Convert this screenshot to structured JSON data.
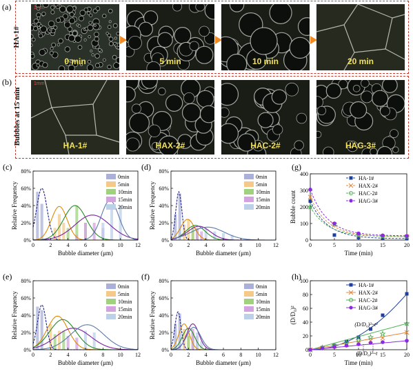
{
  "panel_a": {
    "letter": "(a)",
    "row_label": "HA-1#",
    "scale": "1mm",
    "captions": [
      "0 min",
      "5 min",
      "10 min",
      "20 min"
    ]
  },
  "panel_b": {
    "letter": "(b)",
    "row_label": "Bubbles at 15 min",
    "scale": "1mm",
    "captions": [
      "HA-1#",
      "HAX-2#",
      "HAC-2#",
      "HAG-3#"
    ]
  },
  "colors": {
    "dash": "#c0392b",
    "arrow": "#f08a24",
    "caption": "#f2e15a",
    "t0": "#1f1f8c",
    "t5": "#e08a00",
    "t10": "#2a8a2a",
    "t15": "#7a1fa0",
    "t20": "#5a7aa8",
    "bar0": "#aab0d8",
    "bar5": "#f5c98a",
    "bar10": "#9fd17f",
    "bar15": "#d3a3e0",
    "bar20": "#bcd0e8",
    "ha1": "#1f3fa0",
    "hax2": "#e08a40",
    "hac2": "#4caf50",
    "hag3": "#8a2be2"
  },
  "chart_data": [
    {
      "id": "c",
      "type": "bar",
      "letter": "(c)",
      "xlabel": "Bubble diameter (μm)",
      "ylabel": "Relative Frequency",
      "xlim": [
        0,
        12
      ],
      "ylim": [
        0,
        80
      ],
      "xticks": [
        "0",
        "2",
        "4",
        "6",
        "8",
        "10",
        "12"
      ],
      "yticks": [
        "0%",
        "20%",
        "40%",
        "60%",
        "80%"
      ],
      "legend": [
        "0min",
        "5min",
        "10min",
        "15min",
        "20min"
      ],
      "series": [
        {
          "name": "0min",
          "bars": [
            [
              0.5,
              56
            ],
            [
              1,
              42
            ]
          ],
          "mean": 1.0,
          "sd": 0.6,
          "peak": 60
        },
        {
          "name": "5min",
          "bars": [
            [
              2.5,
              14
            ],
            [
              3,
              30
            ],
            [
              3.5,
              20
            ]
          ],
          "mean": 3.0,
          "sd": 0.9,
          "peak": 39
        },
        {
          "name": "10min",
          "bars": [
            [
              4,
              14
            ],
            [
              5,
              40
            ],
            [
              6,
              20
            ]
          ],
          "mean": 4.8,
          "sd": 1.3,
          "peak": 40
        },
        {
          "name": "15min",
          "bars": [
            [
              5,
              6
            ],
            [
              6,
              20
            ],
            [
              7,
              20
            ],
            [
              8,
              14
            ]
          ],
          "mean": 6.8,
          "sd": 2.0,
          "peak": 29
        },
        {
          "name": "20min",
          "bars": [
            [
              8,
              20
            ],
            [
              9,
              40
            ],
            [
              10,
              40
            ]
          ],
          "mean": 8.8,
          "sd": 1.0,
          "peak": 46
        }
      ]
    },
    {
      "id": "d",
      "type": "bar",
      "letter": "(d)",
      "xlabel": "Bubble diameter (μm)",
      "ylabel": "Relative Frequency",
      "xlim": [
        0,
        12
      ],
      "ylim": [
        0,
        80
      ],
      "xticks": [
        "0",
        "2",
        "4",
        "6",
        "8",
        "10",
        "12"
      ],
      "yticks": [
        "0%",
        "20%",
        "40%",
        "60%",
        "80%"
      ],
      "legend": [
        "0min",
        "5min",
        "10min",
        "15min",
        "20min"
      ],
      "series": [
        {
          "name": "0min",
          "bars": [
            [
              0.5,
              30
            ],
            [
              1,
              54
            ]
          ],
          "mean": 0.9,
          "sd": 0.35,
          "peak": 56
        },
        {
          "name": "5min",
          "bars": [
            [
              1.5,
              18
            ],
            [
              2,
              24
            ],
            [
              2.5,
              10
            ]
          ],
          "mean": 1.9,
          "sd": 0.8,
          "peak": 24
        },
        {
          "name": "10min",
          "bars": [
            [
              2.5,
              16
            ],
            [
              3,
              14
            ]
          ],
          "mean": 2.8,
          "sd": 1.1,
          "peak": 17
        },
        {
          "name": "15min",
          "bars": [
            [
              3,
              14
            ],
            [
              3.5,
              10
            ]
          ],
          "mean": 3.2,
          "sd": 1.3,
          "peak": 16
        },
        {
          "name": "20min",
          "bars": [
            [
              4,
              14
            ],
            [
              5,
              10
            ],
            [
              6,
              8
            ],
            [
              7,
              6
            ]
          ],
          "mean": 4.2,
          "sd": 1.9,
          "peak": 15
        }
      ]
    },
    {
      "id": "e",
      "type": "bar",
      "letter": "(e)",
      "xlabel": "Bubble diameter (μm)",
      "ylabel": "Relative Frequency",
      "xlim": [
        0,
        12
      ],
      "ylim": [
        0,
        80
      ],
      "xticks": [
        "0",
        "2",
        "4",
        "6",
        "8",
        "10",
        "12"
      ],
      "yticks": [
        "0%",
        "20%",
        "40%",
        "60%",
        "80%"
      ],
      "legend": [
        "0min",
        "5min",
        "10min",
        "15min",
        "20min"
      ],
      "series": [
        {
          "name": "0min",
          "bars": [
            [
              0.5,
              50
            ],
            [
              1,
              46
            ]
          ],
          "mean": 1.0,
          "sd": 0.5,
          "peak": 52
        },
        {
          "name": "5min",
          "bars": [
            [
              2,
              30
            ],
            [
              3,
              22
            ]
          ],
          "mean": 2.8,
          "sd": 1.2,
          "peak": 39
        },
        {
          "name": "10min",
          "bars": [
            [
              2.5,
              18
            ],
            [
              3.5,
              22
            ]
          ],
          "mean": 3.4,
          "sd": 1.5,
          "peak": 35
        },
        {
          "name": "15min",
          "bars": [
            [
              4,
              16
            ],
            [
              5,
              14
            ]
          ],
          "mean": 4.6,
          "sd": 2.0,
          "peak": 25
        },
        {
          "name": "20min",
          "bars": [
            [
              6,
              22
            ],
            [
              7,
              20
            ]
          ],
          "mean": 6.2,
          "sd": 1.9,
          "peak": 29
        }
      ]
    },
    {
      "id": "f",
      "type": "bar",
      "letter": "(f)",
      "xlabel": "Bubble diameter (μm)",
      "ylabel": "Relative Frequency",
      "xlim": [
        0,
        12
      ],
      "ylim": [
        0,
        80
      ],
      "xticks": [
        "0",
        "2",
        "4",
        "6",
        "8",
        "10",
        "12"
      ],
      "yticks": [
        "0%",
        "20%",
        "40%",
        "60%",
        "80%"
      ],
      "legend": [
        "0min",
        "5min",
        "10min",
        "15min",
        "20min"
      ],
      "series": [
        {
          "name": "0min",
          "bars": [
            [
              0.5,
              30
            ],
            [
              1,
              42
            ]
          ],
          "mean": 0.8,
          "sd": 0.35,
          "peak": 44
        },
        {
          "name": "5min",
          "bars": [
            [
              1.5,
              24
            ],
            [
              2,
              18
            ]
          ],
          "mean": 1.5,
          "sd": 0.6,
          "peak": 30
        },
        {
          "name": "10min",
          "bars": [
            [
              2,
              16
            ],
            [
              2.5,
              20
            ]
          ],
          "mean": 2.0,
          "sd": 0.7,
          "peak": 25
        },
        {
          "name": "15min",
          "bars": [
            [
              2.5,
              24
            ],
            [
              3,
              16
            ]
          ],
          "mean": 2.5,
          "sd": 0.7,
          "peak": 30
        },
        {
          "name": "20min",
          "bars": [
            [
              3,
              20
            ],
            [
              3.5,
              10
            ]
          ],
          "mean": 2.6,
          "sd": 0.8,
          "peak": 26
        }
      ]
    },
    {
      "id": "g",
      "type": "scatter",
      "letter": "(g)",
      "xlabel": "Time (min)",
      "ylabel": "Bubble count",
      "xlim": [
        0,
        20
      ],
      "ylim": [
        0,
        400
      ],
      "xticks": [
        "0",
        "5",
        "10",
        "15",
        "20"
      ],
      "yticks": [
        "0",
        "100",
        "200",
        "300",
        "400"
      ],
      "series": [
        {
          "name": "HA-1#",
          "marker": "square",
          "x": [
            0,
            5,
            10,
            15,
            20
          ],
          "y": [
            235,
            30,
            15,
            10,
            8
          ]
        },
        {
          "name": "HAX-2#",
          "marker": "x",
          "x": [
            0,
            5,
            10,
            15,
            20
          ],
          "y": [
            260,
            95,
            25,
            20,
            20
          ]
        },
        {
          "name": "HAC-2#",
          "marker": "star",
          "x": [
            0,
            5,
            10,
            15,
            20
          ],
          "y": [
            200,
            95,
            28,
            22,
            20
          ]
        },
        {
          "name": "HAG-3#",
          "marker": "circle",
          "x": [
            0,
            5,
            10,
            15,
            20
          ],
          "y": [
            305,
            100,
            40,
            28,
            25
          ]
        }
      ]
    },
    {
      "id": "h",
      "type": "scatter",
      "letter": "(h)",
      "xlabel": "Time (min)",
      "ylabel": "(D/D₀)²",
      "xlim": [
        0,
        20
      ],
      "ylim": [
        0,
        100
      ],
      "xticks": [
        "0",
        "5",
        "10",
        "15",
        "20"
      ],
      "yticks": [
        "0",
        "20",
        "40",
        "60",
        "80",
        "100"
      ],
      "annotations": [
        "(D/D₀)²~t²",
        "(D/D₀)²~t"
      ],
      "series": [
        {
          "name": "HA-1#",
          "marker": "square",
          "x": [
            0,
            2.5,
            5,
            7.5,
            10,
            12.5,
            15,
            20
          ],
          "y": [
            0,
            3,
            6,
            12,
            18,
            30,
            50,
            81
          ]
        },
        {
          "name": "HAX-2#",
          "marker": "x",
          "x": [
            0,
            2.5,
            5,
            7.5,
            10,
            12.5,
            15,
            20
          ],
          "y": [
            0,
            2,
            5,
            7,
            10,
            13,
            17,
            25
          ]
        },
        {
          "name": "HAC-2#",
          "marker": "star",
          "x": [
            0,
            2.5,
            5,
            7.5,
            10,
            12.5,
            15,
            20
          ],
          "y": [
            0,
            3,
            6,
            10,
            14,
            18,
            23,
            38
          ]
        },
        {
          "name": "HAG-3#",
          "marker": "circle",
          "x": [
            0,
            2.5,
            5,
            7.5,
            10,
            12.5,
            15,
            20
          ],
          "y": [
            0,
            2,
            4,
            6,
            8,
            10,
            11,
            13
          ]
        }
      ]
    }
  ]
}
